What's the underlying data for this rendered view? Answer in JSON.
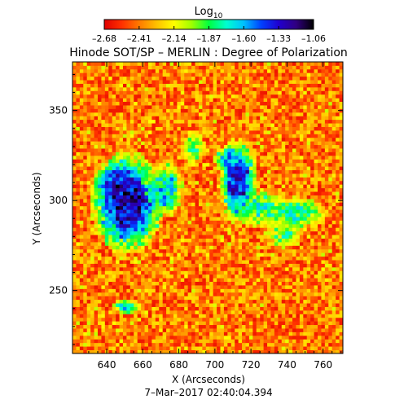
{
  "chart_data": {
    "type": "heatmap",
    "title": "Hinode SOT/SP – MERLIN : Degree of Polarization",
    "xlabel": "X (Arcseconds)",
    "ylabel": "Y (Arcseconds)",
    "footer": "7–Mar–2017 02:40:04.394",
    "colorbar": {
      "title_base": "Log",
      "title_sub": "10",
      "ticks": [
        "–2.68",
        "–2.41",
        "–2.14",
        "–1.87",
        "–1.60",
        "–1.33",
        "–1.06"
      ],
      "range": [
        -2.68,
        -1.06
      ],
      "colors": [
        "#e00000",
        "#ff3000",
        "#ff7a00",
        "#ffc000",
        "#ffff00",
        "#a0ff00",
        "#00ff40",
        "#00ffd0",
        "#00c0ff",
        "#0040ff",
        "#2000d0",
        "#300080",
        "#000000"
      ]
    },
    "xlim": [
      621,
      771
    ],
    "ylim": [
      215,
      377
    ],
    "x_ticks": [
      640,
      660,
      680,
      700,
      720,
      740,
      760
    ],
    "y_ticks": [
      250,
      300,
      350
    ],
    "x_tick_labels": [
      "640",
      "660",
      "680",
      "700",
      "720",
      "740",
      "760"
    ],
    "y_tick_labels": [
      "250",
      "300",
      "350"
    ],
    "regions": [
      {
        "x": 650,
        "y": 298,
        "rx": 13,
        "ry": 18,
        "value": -1.3
      },
      {
        "x": 645,
        "y": 310,
        "rx": 8,
        "ry": 6,
        "value": -1.45
      },
      {
        "x": 672,
        "y": 305,
        "rx": 6,
        "ry": 10,
        "value": -1.7
      },
      {
        "x": 712,
        "y": 310,
        "rx": 7,
        "ry": 15,
        "value": -1.4
      },
      {
        "x": 706,
        "y": 322,
        "rx": 5,
        "ry": 5,
        "value": -1.65
      },
      {
        "x": 725,
        "y": 295,
        "rx": 9,
        "ry": 7,
        "value": -1.85
      },
      {
        "x": 745,
        "y": 292,
        "rx": 10,
        "ry": 6,
        "value": -1.8
      },
      {
        "x": 687,
        "y": 328,
        "rx": 4,
        "ry": 6,
        "value": -1.9
      },
      {
        "x": 650,
        "y": 240,
        "rx": 5,
        "ry": 3,
        "value": -1.7
      },
      {
        "x": 737,
        "y": 280,
        "rx": 7,
        "ry": 5,
        "value": -1.95
      }
    ]
  }
}
